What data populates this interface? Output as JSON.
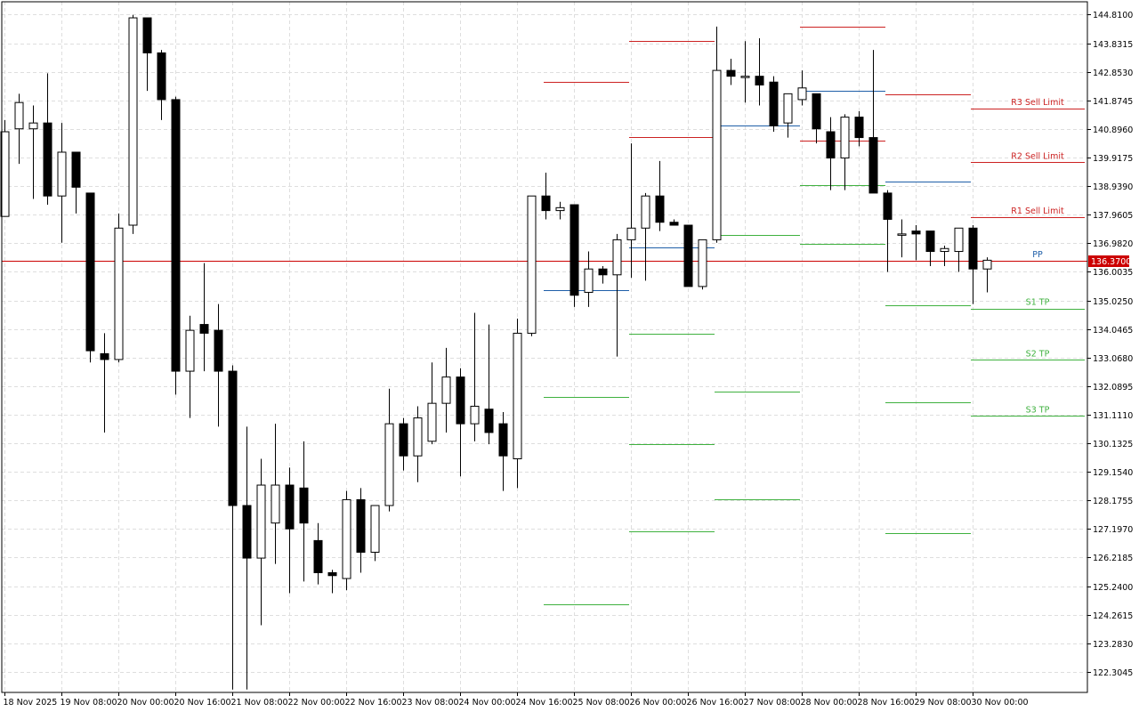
{
  "chart_data": {
    "type": "candlestick",
    "grid": true,
    "ylim": [
      121.6,
      145.25
    ],
    "y_ticks": [
      "144.8100",
      "143.8315",
      "142.8530",
      "141.8745",
      "140.8960",
      "139.9175",
      "138.9390",
      "137.9605",
      "136.9820",
      "136.0035",
      "135.0250",
      "134.0465",
      "133.0680",
      "132.0895",
      "131.1110",
      "130.1325",
      "129.1540",
      "128.1755",
      "127.1970",
      "126.2185",
      "125.2400",
      "124.2615",
      "123.2830",
      "122.3045"
    ],
    "x_ticks": [
      {
        "label": "18 Nov 2025",
        "index": 0
      },
      {
        "label": "19 Nov 08:00",
        "index": 4
      },
      {
        "label": "20 Nov 00:00",
        "index": 8
      },
      {
        "label": "20 Nov 16:00",
        "index": 12
      },
      {
        "label": "21 Nov 08:00",
        "index": 16
      },
      {
        "label": "22 Nov 00:00",
        "index": 20
      },
      {
        "label": "22 Nov 16:00",
        "index": 24
      },
      {
        "label": "23 Nov 08:00",
        "index": 28
      },
      {
        "label": "24 Nov 00:00",
        "index": 32
      },
      {
        "label": "24 Nov 16:00",
        "index": 36
      },
      {
        "label": "25 Nov 08:00",
        "index": 40
      },
      {
        "label": "26 Nov 00:00",
        "index": 44
      },
      {
        "label": "26 Nov 16:00",
        "index": 48
      },
      {
        "label": "27 Nov 08:00",
        "index": 52
      },
      {
        "label": "28 Nov 00:00",
        "index": 56
      },
      {
        "label": "28 Nov 16:00",
        "index": 60
      },
      {
        "label": "29 Nov 08:00",
        "index": 64
      },
      {
        "label": "30 Nov 00:00",
        "index": 68
      }
    ],
    "candles": [
      {
        "o": 137.9,
        "h": 141.2,
        "l": 137.9,
        "c": 140.8
      },
      {
        "o": 140.9,
        "h": 142.1,
        "l": 139.7,
        "c": 141.8
      },
      {
        "o": 140.9,
        "h": 141.7,
        "l": 138.5,
        "c": 141.1
      },
      {
        "o": 141.1,
        "h": 142.8,
        "l": 138.3,
        "c": 138.6
      },
      {
        "o": 138.6,
        "h": 141.1,
        "l": 137.0,
        "c": 140.1
      },
      {
        "o": 140.1,
        "h": 140.1,
        "l": 138.0,
        "c": 138.9
      },
      {
        "o": 138.7,
        "h": 138.7,
        "l": 132.9,
        "c": 133.3
      },
      {
        "o": 133.2,
        "h": 133.9,
        "l": 130.5,
        "c": 133.0
      },
      {
        "o": 133.0,
        "h": 138.0,
        "l": 132.9,
        "c": 137.5
      },
      {
        "o": 137.6,
        "h": 144.8,
        "l": 137.3,
        "c": 144.7
      },
      {
        "o": 144.7,
        "h": 144.7,
        "l": 142.2,
        "c": 143.5
      },
      {
        "o": 143.5,
        "h": 143.6,
        "l": 141.2,
        "c": 141.9
      },
      {
        "o": 141.9,
        "h": 142.0,
        "l": 131.8,
        "c": 132.6
      },
      {
        "o": 132.6,
        "h": 134.5,
        "l": 131.0,
        "c": 134.0
      },
      {
        "o": 134.2,
        "h": 136.3,
        "l": 132.6,
        "c": 133.9
      },
      {
        "o": 134.0,
        "h": 134.9,
        "l": 130.7,
        "c": 132.6
      },
      {
        "o": 132.6,
        "h": 132.8,
        "l": 121.7,
        "c": 128.0
      },
      {
        "o": 128.0,
        "h": 130.7,
        "l": 121.7,
        "c": 126.2
      },
      {
        "o": 126.2,
        "h": 129.6,
        "l": 123.9,
        "c": 128.7
      },
      {
        "o": 127.4,
        "h": 130.8,
        "l": 126.0,
        "c": 128.7
      },
      {
        "o": 128.7,
        "h": 129.3,
        "l": 125.0,
        "c": 127.2
      },
      {
        "o": 128.6,
        "h": 130.2,
        "l": 125.4,
        "c": 127.4
      },
      {
        "o": 126.8,
        "h": 127.4,
        "l": 125.3,
        "c": 125.7
      },
      {
        "o": 125.7,
        "h": 125.8,
        "l": 125.0,
        "c": 125.6
      },
      {
        "o": 125.5,
        "h": 128.5,
        "l": 125.1,
        "c": 128.2
      },
      {
        "o": 128.2,
        "h": 128.6,
        "l": 125.7,
        "c": 126.4
      },
      {
        "o": 126.4,
        "h": 128.0,
        "l": 126.1,
        "c": 128.0
      },
      {
        "o": 128.0,
        "h": 132.0,
        "l": 127.8,
        "c": 130.8
      },
      {
        "o": 130.8,
        "h": 131.0,
        "l": 129.2,
        "c": 129.7
      },
      {
        "o": 129.7,
        "h": 131.4,
        "l": 128.8,
        "c": 131.0
      },
      {
        "o": 130.2,
        "h": 132.9,
        "l": 130.1,
        "c": 131.5
      },
      {
        "o": 131.5,
        "h": 133.4,
        "l": 130.5,
        "c": 132.4
      },
      {
        "o": 132.4,
        "h": 132.7,
        "l": 129.0,
        "c": 130.8
      },
      {
        "o": 130.8,
        "h": 134.6,
        "l": 130.2,
        "c": 131.4
      },
      {
        "o": 131.3,
        "h": 134.2,
        "l": 130.1,
        "c": 130.5
      },
      {
        "o": 130.8,
        "h": 131.2,
        "l": 128.5,
        "c": 129.7
      },
      {
        "o": 129.6,
        "h": 134.4,
        "l": 128.6,
        "c": 133.9
      },
      {
        "o": 133.9,
        "h": 138.5,
        "l": 133.8,
        "c": 138.6
      },
      {
        "o": 138.6,
        "h": 139.4,
        "l": 137.8,
        "c": 138.1
      },
      {
        "o": 138.1,
        "h": 138.4,
        "l": 137.8,
        "c": 138.2
      },
      {
        "o": 138.3,
        "h": 138.3,
        "l": 134.8,
        "c": 135.2
      },
      {
        "o": 135.3,
        "h": 136.7,
        "l": 134.8,
        "c": 136.1
      },
      {
        "o": 136.1,
        "h": 136.2,
        "l": 135.6,
        "c": 135.9
      },
      {
        "o": 135.9,
        "h": 137.3,
        "l": 133.1,
        "c": 137.1
      },
      {
        "o": 137.1,
        "h": 140.4,
        "l": 135.8,
        "c": 137.5
      },
      {
        "o": 137.5,
        "h": 138.7,
        "l": 135.7,
        "c": 138.6
      },
      {
        "o": 138.6,
        "h": 139.8,
        "l": 137.4,
        "c": 137.7
      },
      {
        "o": 137.7,
        "h": 137.8,
        "l": 137.6,
        "c": 137.6
      },
      {
        "o": 137.6,
        "h": 137.6,
        "l": 135.5,
        "c": 135.5
      },
      {
        "o": 135.5,
        "h": 137.1,
        "l": 135.4,
        "c": 137.1
      },
      {
        "o": 137.1,
        "h": 144.4,
        "l": 137.0,
        "c": 142.9
      },
      {
        "o": 142.9,
        "h": 143.3,
        "l": 142.4,
        "c": 142.7
      },
      {
        "o": 142.7,
        "h": 143.9,
        "l": 141.8,
        "c": 142.7
      },
      {
        "o": 142.7,
        "h": 144.0,
        "l": 141.7,
        "c": 142.4
      },
      {
        "o": 142.5,
        "h": 142.7,
        "l": 140.8,
        "c": 141.0
      },
      {
        "o": 141.1,
        "h": 142.1,
        "l": 140.6,
        "c": 142.1
      },
      {
        "o": 141.9,
        "h": 142.9,
        "l": 141.7,
        "c": 142.3
      },
      {
        "o": 142.1,
        "h": 142.1,
        "l": 140.4,
        "c": 140.9
      },
      {
        "o": 140.8,
        "h": 141.3,
        "l": 138.8,
        "c": 139.9
      },
      {
        "o": 139.9,
        "h": 141.4,
        "l": 138.8,
        "c": 141.3
      },
      {
        "o": 141.3,
        "h": 141.5,
        "l": 140.3,
        "c": 140.6
      },
      {
        "o": 140.6,
        "h": 143.6,
        "l": 138.8,
        "c": 138.7
      },
      {
        "o": 138.7,
        "h": 138.8,
        "l": 136.0,
        "c": 137.8
      },
      {
        "o": 137.3,
        "h": 137.8,
        "l": 136.5,
        "c": 137.3
      },
      {
        "o": 137.4,
        "h": 137.6,
        "l": 136.4,
        "c": 137.3
      },
      {
        "o": 137.4,
        "h": 137.4,
        "l": 136.2,
        "c": 136.7
      },
      {
        "o": 136.7,
        "h": 136.9,
        "l": 136.2,
        "c": 136.8
      },
      {
        "o": 136.7,
        "h": 137.5,
        "l": 136.0,
        "c": 137.5
      },
      {
        "o": 137.5,
        "h": 137.6,
        "l": 134.9,
        "c": 136.1
      },
      {
        "o": 136.1,
        "h": 136.5,
        "l": 135.3,
        "c": 136.4
      }
    ],
    "level_blocks": [
      {
        "start": 38,
        "end": 44,
        "R1": null,
        "R2": null,
        "R3": 142.51,
        "PP": 135.37,
        "S1": 131.71,
        "S2": null,
        "S3": 124.61
      },
      {
        "start": 44,
        "end": 50,
        "R1": 140.61,
        "R2": null,
        "R3": 143.91,
        "PP": 136.83,
        "S1": 133.87,
        "S2": 130.11,
        "S3": 127.11
      },
      {
        "start": 50,
        "end": 56,
        "R1": null,
        "R2": null,
        "R3": null,
        "PP": 141.01,
        "S1": 137.26,
        "S2": 131.91,
        "S3": 128.21
      },
      {
        "start": 56,
        "end": 62,
        "R1": 140.51,
        "R2": null,
        "R3": 144.41,
        "PP": 142.21,
        "S1": 138.96,
        "S2": 136.96,
        "S3": null
      },
      {
        "start": 62,
        "end": 68,
        "R1": null,
        "R2": null,
        "R3": 142.08,
        "PP": 139.08,
        "S1": 134.86,
        "S2": 131.53,
        "S3": 127.06
      },
      {
        "start": 68,
        "end": 76,
        "R1": 137.88,
        "R2": 139.75,
        "R3": 141.59,
        "PP": 136.38,
        "S1": 134.75,
        "S2": 132.99,
        "S3": 131.07
      }
    ],
    "level_labels": [
      {
        "text": "R3 Sell Limit",
        "value": 141.59,
        "color": "#cc2222"
      },
      {
        "text": "R2 Sell Limit",
        "value": 139.75,
        "color": "#cc2222"
      },
      {
        "text": "R1 Sell Limit",
        "value": 137.88,
        "color": "#cc2222"
      },
      {
        "text": "PP",
        "value": 136.38,
        "color": "#1f5fa8"
      },
      {
        "text": "S1 TP",
        "value": 134.75,
        "color": "#3fb13f"
      },
      {
        "text": "S2 TP",
        "value": 132.99,
        "color": "#3fb13f"
      },
      {
        "text": "S3 TP",
        "value": 131.07,
        "color": "#3fb13f"
      }
    ],
    "current_price": {
      "value": 136.37,
      "label": "136.3700"
    },
    "colors": {
      "resistance": "#cc2222",
      "pivot": "#1f5fa8",
      "support": "#3fb13f",
      "price_line": "#cc0000",
      "bull_body": "#ffffff",
      "bear_body": "#000000",
      "grid": "#dedede"
    }
  }
}
